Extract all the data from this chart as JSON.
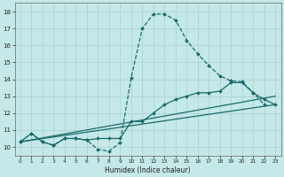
{
  "xlabel": "Humidex (Indice chaleur)",
  "bg_color": "#c5e8e8",
  "grid_color": "#add4d4",
  "line_color": "#1a6b6b",
  "xlim": [
    -0.5,
    23.5
  ],
  "ylim": [
    9.5,
    18.5
  ],
  "xticks": [
    0,
    1,
    2,
    3,
    4,
    5,
    6,
    7,
    8,
    9,
    10,
    11,
    12,
    13,
    14,
    15,
    16,
    17,
    18,
    19,
    20,
    21,
    22,
    23
  ],
  "yticks": [
    10,
    11,
    12,
    13,
    14,
    15,
    16,
    17,
    18
  ],
  "lines": [
    {
      "x": [
        0,
        1,
        2,
        3,
        4,
        5,
        6,
        7,
        8,
        9,
        10,
        11,
        12,
        13,
        14,
        15,
        16,
        17,
        18,
        19,
        20,
        21,
        22
      ],
      "y": [
        10.3,
        10.8,
        10.3,
        10.1,
        10.5,
        10.5,
        10.4,
        9.85,
        9.75,
        10.25,
        14.1,
        17.0,
        17.85,
        17.85,
        17.5,
        16.3,
        15.5,
        14.8,
        14.2,
        13.9,
        13.85,
        13.2,
        12.5
      ],
      "style": "--",
      "marker": "D",
      "markersize": 2.0,
      "lw": 0.9
    },
    {
      "x": [
        0,
        1,
        2,
        3,
        4,
        5,
        6,
        7,
        8,
        9,
        10,
        11,
        12,
        13,
        14,
        15,
        16,
        17,
        18,
        19,
        20,
        21,
        22,
        23
      ],
      "y": [
        10.3,
        10.8,
        10.3,
        10.1,
        10.5,
        10.5,
        10.4,
        10.5,
        10.5,
        10.5,
        11.5,
        11.5,
        12.0,
        12.5,
        12.8,
        13.0,
        13.2,
        13.2,
        13.3,
        13.8,
        13.8,
        13.2,
        12.8,
        12.5
      ],
      "style": "-",
      "marker": "D",
      "markersize": 2.0,
      "lw": 0.9
    },
    {
      "x": [
        0,
        23
      ],
      "y": [
        10.3,
        13.0
      ],
      "style": "-",
      "marker": null,
      "markersize": 0,
      "lw": 0.9
    },
    {
      "x": [
        0,
        23
      ],
      "y": [
        10.3,
        12.5
      ],
      "style": "-",
      "marker": null,
      "markersize": 0,
      "lw": 0.9
    }
  ]
}
